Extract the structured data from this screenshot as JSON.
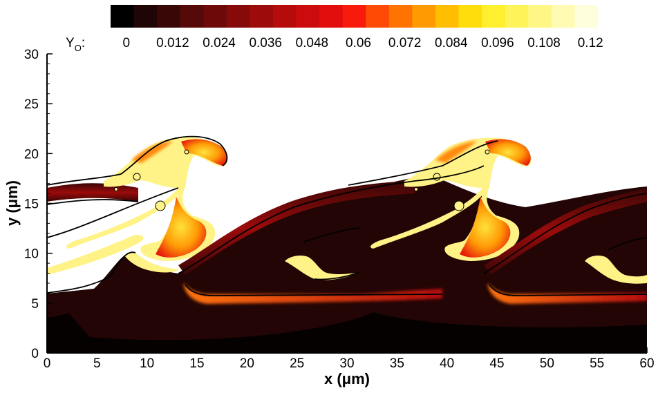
{
  "chart_data": {
    "type": "heatmap",
    "title": "",
    "xlabel": "x (μm)",
    "ylabel": "y (μm)",
    "xlim": [
      0,
      60
    ],
    "ylim": [
      0,
      30
    ],
    "x_ticks": [
      "0",
      "5",
      "10",
      "15",
      "20",
      "25",
      "30",
      "35",
      "40",
      "45",
      "50",
      "55",
      "60"
    ],
    "y_ticks": [
      "0",
      "5",
      "10",
      "15",
      "20",
      "25",
      "30"
    ],
    "colorbar": {
      "variable": "Y",
      "variable_subscript": "O",
      "suffix": ":",
      "levels": [
        0,
        0.006,
        0.012,
        0.018,
        0.024,
        0.03,
        0.036,
        0.042,
        0.048,
        0.054,
        0.06,
        0.066,
        0.072,
        0.078,
        0.084,
        0.09,
        0.096,
        0.102,
        0.108,
        0.114,
        0.12
      ],
      "labels": [
        "0",
        "0.012",
        "0.024",
        "0.036",
        "0.048",
        "0.06",
        "0.072",
        "0.084",
        "0.096",
        "0.108",
        "0.12"
      ],
      "colors": [
        "#000000",
        "#1f0505",
        "#3a0707",
        "#550909",
        "#6e0909",
        "#860a0a",
        "#9e0b0b",
        "#b50b0b",
        "#cc0c0c",
        "#e20e0e",
        "#f81b0b",
        "#ff4a05",
        "#ff7303",
        "#ff9a02",
        "#ffbe02",
        "#ffdd0c",
        "#ffef2e",
        "#fff35a",
        "#fff785",
        "#fffbb2",
        "#fffedc"
      ]
    },
    "field": {
      "background_color": "#200404",
      "low_color": "#050000",
      "upper_color": "#ffffff",
      "front_color": "#ff7410",
      "hot_color": "#ffe23a",
      "pocket_color": "#fff699"
    }
  }
}
